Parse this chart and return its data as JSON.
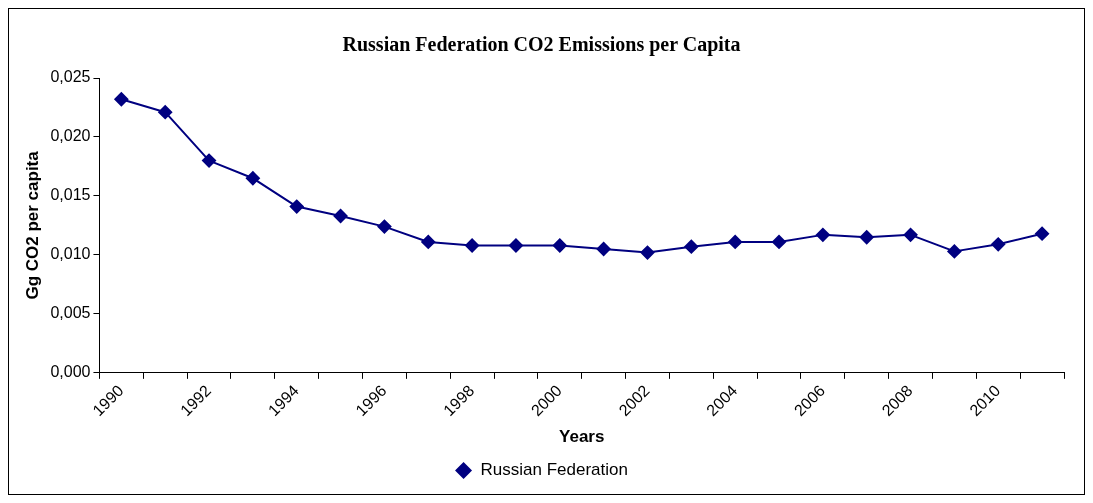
{
  "chart_data": {
    "type": "line",
    "title": "Russian Federation CO2 Emissions per Capita",
    "xlabel": "Years",
    "ylabel": "Gg CO2 per capita",
    "categories": [
      "1990",
      null,
      "1992",
      null,
      "1994",
      null,
      "1996",
      null,
      "1998",
      null,
      "2000",
      null,
      "2002",
      null,
      "2004",
      null,
      "2006",
      null,
      "2008",
      null,
      "2010",
      null
    ],
    "series": [
      {
        "name": "Russian Federation",
        "color": "#000080",
        "values": [
          0.0232,
          0.0221,
          0.018,
          0.0165,
          0.0141,
          0.0133,
          0.0124,
          0.0111,
          0.0108,
          0.0108,
          0.0108,
          0.0105,
          0.0102,
          0.0107,
          0.0111,
          0.0111,
          0.0117,
          0.0115,
          0.0117,
          0.0103,
          0.0109,
          0.0118
        ]
      }
    ],
    "ylim": [
      0,
      0.025
    ],
    "yticks": [
      {
        "value": 0,
        "label": "0,000"
      },
      {
        "value": 0.005,
        "label": "0,005"
      },
      {
        "value": 0.01,
        "label": "0,010"
      },
      {
        "value": 0.015,
        "label": "0,015"
      },
      {
        "value": 0.02,
        "label": "0,020"
      },
      {
        "value": 0.025,
        "label": "0,025"
      }
    ],
    "grid": false,
    "legend": "bottom",
    "marker": "diamond",
    "line_style": "solid"
  }
}
